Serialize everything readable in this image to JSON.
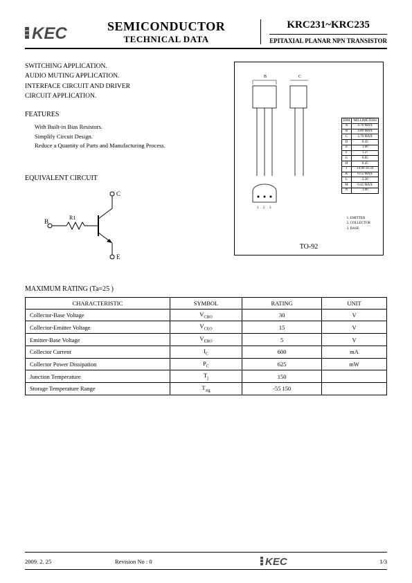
{
  "header": {
    "logo_text": "KEC",
    "title_line1": "SEMICONDUCTOR",
    "title_line2": "TECHNICAL DATA",
    "part_number": "KRC231~KRC235",
    "description": "EPITAXIAL PLANAR NPN TRANSISTOR"
  },
  "applications": [
    "SWITCHING APPLICATION.",
    "AUDIO MUTING APPLICATION.",
    "INTERFACE CIRCUIT AND DRIVER",
    "CIRCUIT APPLICATION."
  ],
  "features_title": "FEATURES",
  "features": [
    "With Built-in Bias Resistors.",
    "Simplify Circuit Design.",
    "Reduce a Quantity of Parts and Manufacturing Process."
  ],
  "equiv_title": "EQUIVALENT CIRCUIT",
  "circuit": {
    "B": "B",
    "C": "C",
    "E": "E",
    "R1": "R1"
  },
  "package": {
    "dim_header": [
      "DIM",
      "MILLIMETERS"
    ],
    "dims": [
      [
        "A",
        "4.70 MAX"
      ],
      [
        "B",
        "4.80 MAX"
      ],
      [
        "C",
        "3.70 MAX"
      ],
      [
        "D",
        "0.45"
      ],
      [
        "E",
        "1.00"
      ],
      [
        "F",
        "1.27"
      ],
      [
        "G",
        "0.85"
      ],
      [
        "H",
        "0.45"
      ],
      [
        "J",
        "14.00 ±0.50"
      ],
      [
        "K",
        "0.55 MAX"
      ],
      [
        "L",
        "2.30"
      ],
      [
        "M",
        "0.45 MAX"
      ],
      [
        "N",
        "1.00"
      ]
    ],
    "pins": [
      "1. EMITTER",
      "2. COLLECTOR",
      "3. BASE"
    ],
    "name": "TO-92",
    "labels": {
      "B": "B",
      "C": "C"
    }
  },
  "max_rating": {
    "title": "MAXIMUM RATING  (Ta=25   )",
    "headers": [
      "CHARACTERISTIC",
      "SYMBOL",
      "RATING",
      "UNIT"
    ],
    "rows": [
      {
        "char": "Collector-Base Voltage",
        "sym": "V",
        "sub": "CBO",
        "rating": "30",
        "unit": "V"
      },
      {
        "char": "Collector-Emitter Voltage",
        "sym": "V",
        "sub": "CEO",
        "rating": "15",
        "unit": "V"
      },
      {
        "char": "Emitter-Base Voltage",
        "sym": "V",
        "sub": "EBO",
        "rating": "5",
        "unit": "V"
      },
      {
        "char": "Collector Current",
        "sym": "I",
        "sub": "C",
        "rating": "600",
        "unit": "mA"
      },
      {
        "char": "Collector Power Dissipation",
        "sym": "P",
        "sub": "C",
        "rating": "625",
        "unit": "mW"
      },
      {
        "char": "Junction Temperature",
        "sym": "T",
        "sub": "j",
        "rating": "150",
        "unit": ""
      },
      {
        "char": "Storage Temperature Range",
        "sym": "T",
        "sub": "stg",
        "rating": "-55   150",
        "unit": ""
      }
    ]
  },
  "footer": {
    "date": "2009. 2. 25",
    "revision": "Revision No : 0",
    "logo": "KEC",
    "page": "1/3"
  },
  "colors": {
    "text": "#000000",
    "bg": "#ffffff",
    "logo_fill": "#4a4a4a"
  }
}
